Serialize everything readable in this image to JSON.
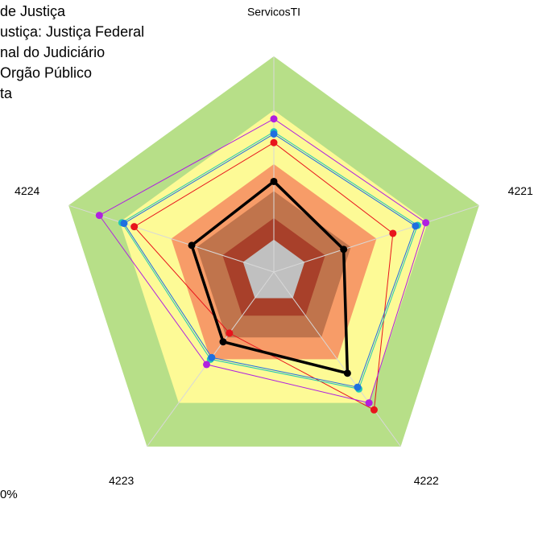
{
  "chart_data": {
    "type": "radar",
    "categories": [
      "ServicosTI",
      "4221",
      "4222",
      "4223",
      "4224"
    ],
    "rlim": [
      0,
      1
    ],
    "bands": [
      {
        "value": 1.0,
        "color": "#b7df88"
      },
      {
        "value": 0.75,
        "color": "#fdfa96"
      },
      {
        "value": 0.5,
        "color": "#f79c68"
      },
      {
        "value": 0.375,
        "color": "#c0744c"
      },
      {
        "value": 0.25,
        "color": "#a8402a"
      },
      {
        "value": 0.15,
        "color": "#c0c0c0"
      }
    ],
    "series": [
      {
        "name": "de Justiça",
        "color": "#000000",
        "values": [
          0.42,
          0.34,
          0.58,
          0.4,
          0.4
        ]
      },
      {
        "name": "ustiça: Justiça Federal",
        "color": "#e8141c",
        "values": [
          0.6,
          0.58,
          0.79,
          0.35,
          0.68
        ]
      },
      {
        "name": "nal do Judiciário",
        "color": "#22c8b4",
        "values": [
          0.65,
          0.7,
          0.67,
          0.5,
          0.74
        ]
      },
      {
        "name": "Orgão Público",
        "color": "#1f6fe0",
        "values": [
          0.64,
          0.69,
          0.66,
          0.49,
          0.73
        ]
      },
      {
        "name": "ta",
        "color": "#b020e0",
        "values": [
          0.71,
          0.74,
          0.75,
          0.53,
          0.85
        ]
      }
    ],
    "annotation": "0%"
  }
}
